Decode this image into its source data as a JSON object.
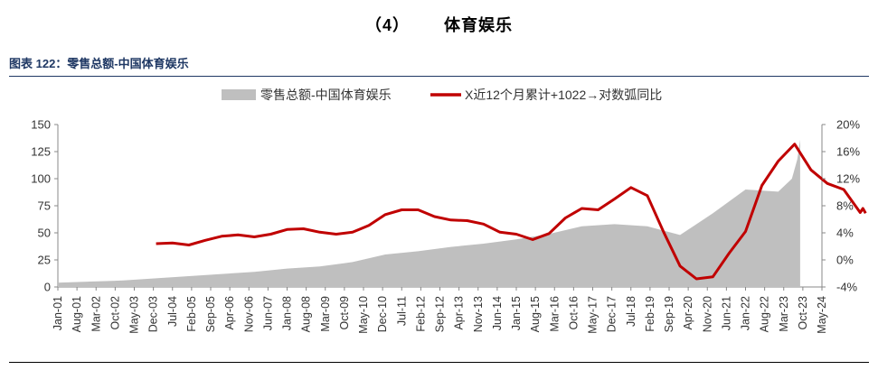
{
  "header": {
    "section_number": "（4）",
    "section_title": "体育娱乐",
    "figure_caption": "图表 122：零售总额-中国体育娱乐"
  },
  "chart_data": {
    "type": "area",
    "x_ticks": [
      "Jan-01",
      "Aug-01",
      "Mar-02",
      "Oct-02",
      "May-03",
      "Dec-03",
      "Jul-04",
      "Feb-05",
      "Sep-05",
      "Apr-06",
      "Nov-06",
      "Jun-07",
      "Jan-08",
      "Aug-08",
      "Mar-09",
      "Oct-09",
      "May-10",
      "Dec-10",
      "Jul-11",
      "Feb-12",
      "Sep-12",
      "Apr-13",
      "Nov-13",
      "Jun-14",
      "Jan-15",
      "Aug-15",
      "Mar-16",
      "Oct-16",
      "May-17",
      "Dec-17",
      "Jul-18",
      "Feb-19",
      "Sep-19",
      "Apr-20",
      "Nov-20",
      "Jun-21",
      "Jan-22",
      "Aug-22",
      "Mar-23",
      "Oct-23",
      "May-24"
    ],
    "y_left": {
      "ticks": [
        "0",
        "25",
        "50",
        "75",
        "100",
        "125",
        "150"
      ],
      "range": [
        0,
        150
      ]
    },
    "y_right": {
      "ticks": [
        "-4%",
        "0%",
        "4%",
        "8%",
        "12%",
        "16%",
        "20%"
      ],
      "range": [
        -4,
        20
      ]
    },
    "series": [
      {
        "name": "零售总额-中国体育娱乐",
        "kind": "area",
        "axis": "left",
        "color": "#bfbfbf",
        "points": [
          [
            "Jan-01",
            4
          ],
          [
            "Jan-02",
            5
          ],
          [
            "Jan-03",
            6
          ],
          [
            "Jan-04",
            8
          ],
          [
            "Jan-05",
            10
          ],
          [
            "Jan-06",
            12
          ],
          [
            "Jan-07",
            14
          ],
          [
            "Jan-08",
            17
          ],
          [
            "Jan-09",
            19
          ],
          [
            "Jan-10",
            23
          ],
          [
            "Jan-11",
            30
          ],
          [
            "Jan-12",
            33
          ],
          [
            "Jan-13",
            37
          ],
          [
            "Jan-14",
            40
          ],
          [
            "Jan-15",
            44
          ],
          [
            "Jan-16",
            49
          ],
          [
            "Jan-17",
            56
          ],
          [
            "Jan-18",
            58
          ],
          [
            "Jan-19",
            56
          ],
          [
            "Jan-20",
            48
          ],
          [
            "Jan-21",
            68
          ],
          [
            "Jan-22",
            90
          ],
          [
            "Jan-23",
            88
          ],
          [
            "Jun-23",
            100
          ],
          [
            "Aug-23",
            118
          ],
          [
            "Sep-23",
            136
          ]
        ]
      },
      {
        "name": "X近12个月累计+1022→对数弧同比",
        "kind": "line",
        "axis": "right",
        "color": "#c00000",
        "points": [
          [
            "Jan-04",
            2.4
          ],
          [
            "Jul-04",
            2.5
          ],
          [
            "Jan-05",
            2.2
          ],
          [
            "Jul-05",
            2.9
          ],
          [
            "Jan-06",
            3.5
          ],
          [
            "Jul-06",
            3.7
          ],
          [
            "Jan-07",
            3.4
          ],
          [
            "Jul-07",
            3.8
          ],
          [
            "Jan-08",
            4.5
          ],
          [
            "Jul-08",
            4.6
          ],
          [
            "Jan-09",
            4.1
          ],
          [
            "Jul-09",
            3.8
          ],
          [
            "Jan-10",
            4.1
          ],
          [
            "Jul-10",
            5.1
          ],
          [
            "Jan-11",
            6.7
          ],
          [
            "Jul-11",
            7.4
          ],
          [
            "Jan-12",
            7.4
          ],
          [
            "Jul-12",
            6.4
          ],
          [
            "Jan-13",
            5.9
          ],
          [
            "Jul-13",
            5.8
          ],
          [
            "Jan-14",
            5.3
          ],
          [
            "Jul-14",
            4.1
          ],
          [
            "Jan-15",
            3.8
          ],
          [
            "Jul-15",
            3.0
          ],
          [
            "Jan-16",
            3.9
          ],
          [
            "Jul-16",
            6.2
          ],
          [
            "Jan-17",
            7.6
          ],
          [
            "Jul-17",
            7.4
          ],
          [
            "Jan-18",
            9.0
          ],
          [
            "Jul-18",
            10.7
          ],
          [
            "Jan-19",
            9.5
          ],
          [
            "Jul-19",
            4.1
          ],
          [
            "Jan-20",
            -0.9
          ],
          [
            "Jul-20",
            -2.8
          ],
          [
            "Jan-21",
            -2.5
          ],
          [
            "Jul-21",
            1.0
          ],
          [
            "Jan-22",
            4.2
          ],
          [
            "Jul-22",
            11.0
          ],
          [
            "Jan-23",
            14.6
          ],
          [
            "Jul-23",
            17.1
          ],
          [
            "Jan-24",
            13.3
          ],
          [
            "Jul-24",
            11.3
          ],
          [
            "Jan-25",
            10.4
          ],
          [
            "Jul-25",
            7.0
          ],
          [
            "Aug-25",
            7.6
          ],
          [
            "Sep-25",
            6.9
          ]
        ]
      }
    ],
    "legend": "top-center",
    "grid": false
  }
}
